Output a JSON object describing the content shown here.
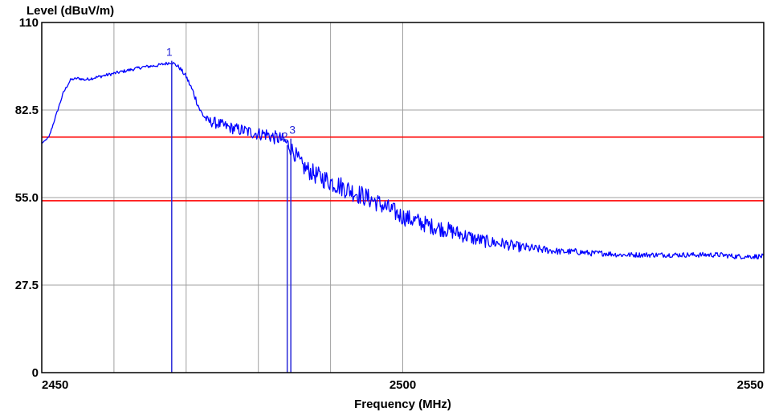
{
  "chart_data": {
    "type": "line",
    "title": "",
    "ylabel": "Level (dBuV/m)",
    "xlabel": "Frequency (MHz)",
    "xlim": [
      2450,
      2550
    ],
    "ylim": [
      0,
      110
    ],
    "x_ticks": [
      2450,
      2500,
      2550
    ],
    "x_tick_labels": [
      "2450",
      "2500",
      "2550"
    ],
    "y_ticks": [
      0,
      27.5,
      55.0,
      82.5,
      110
    ],
    "y_tick_labels": [
      "0",
      "27.5",
      "55.0",
      "82.5",
      "110"
    ],
    "x_gridlines": [
      2450,
      2460,
      2470,
      2480,
      2490,
      2500,
      2550
    ],
    "y_gridlines": [
      27.5,
      55.0,
      82.5
    ],
    "grid": true,
    "limit_lines": [
      {
        "value": 74,
        "color": "#ff0000"
      },
      {
        "value": 54,
        "color": "#ff0000"
      }
    ],
    "markers": [
      {
        "label": "1",
        "x": 2468.0,
        "y": 98.0
      },
      {
        "label": "2",
        "x": 2484.0,
        "y": 71.5
      },
      {
        "label": "3",
        "x": 2484.5,
        "y": 73.5
      }
    ],
    "series": [
      {
        "color": "#0000ff",
        "x": [
          2450,
          2451,
          2452,
          2453,
          2454,
          2455,
          2456,
          2458,
          2460,
          2462,
          2464,
          2466,
          2467,
          2468,
          2469,
          2470,
          2471,
          2472,
          2473,
          2474,
          2476,
          2478,
          2480,
          2481,
          2482,
          2483,
          2484,
          2485,
          2486,
          2488,
          2490,
          2492,
          2494,
          2496,
          2498,
          2500,
          2502,
          2504,
          2506,
          2508,
          2510,
          2512,
          2514,
          2516,
          2518,
          2520,
          2522,
          2524,
          2526,
          2528,
          2530,
          2532,
          2534,
          2536,
          2538,
          2540,
          2542,
          2544,
          2546,
          2548,
          2550
        ],
        "y": [
          72,
          74,
          81,
          88,
          92,
          92.5,
          92,
          93,
          94,
          95,
          96,
          96.5,
          97,
          97.5,
          96,
          93,
          88,
          82,
          79,
          78.5,
          77,
          76,
          75,
          75,
          74,
          73.5,
          72,
          69,
          65,
          62,
          60,
          58,
          56,
          54,
          51.5,
          49,
          47.5,
          46,
          45,
          43.5,
          42,
          41,
          40.5,
          39.5,
          39,
          38.5,
          38,
          38,
          37.5,
          37.5,
          37,
          37,
          37,
          37,
          37,
          37,
          37,
          37,
          36.5,
          36.5,
          36.5
        ],
        "noise": [
          0,
          0.3,
          0.4,
          0.4,
          0.4,
          0.4,
          0.5,
          0.5,
          0.5,
          0.5,
          0.5,
          0.5,
          0.5,
          0.5,
          0.6,
          0.8,
          1.0,
          1.2,
          1.5,
          1.8,
          1.8,
          2.0,
          2.0,
          2.2,
          2.2,
          2.2,
          2.4,
          2.6,
          2.8,
          3.0,
          3.2,
          3.2,
          3.2,
          3.0,
          3.0,
          2.8,
          2.8,
          2.6,
          2.6,
          2.4,
          2.2,
          2.0,
          1.8,
          1.6,
          1.4,
          1.2,
          1.0,
          1.0,
          0.9,
          0.9,
          0.8,
          0.8,
          0.8,
          0.8,
          0.8,
          0.8,
          0.8,
          0.8,
          0.8,
          0.8,
          0.8
        ]
      }
    ]
  },
  "colors": {
    "trace": "#0000ff",
    "limit": "#ff0000",
    "grid": "#a0a0a0",
    "marker": "#2a2ad8",
    "frame": "#000000"
  }
}
